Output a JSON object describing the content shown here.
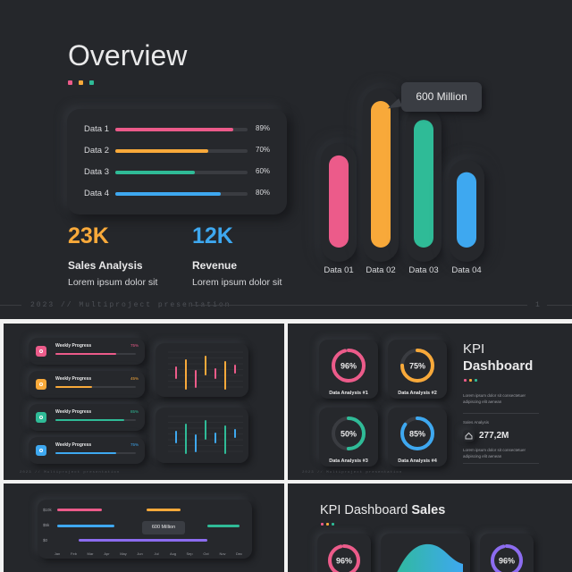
{
  "colors": {
    "pink": "#ec5b8a",
    "orange": "#f8a93a",
    "teal": "#2fbb97",
    "blue": "#3ea8f0",
    "purple": "#8c6cf0",
    "bg": "#25272b",
    "track": "#3a3c41"
  },
  "main": {
    "title": "Overview",
    "rows": [
      {
        "label": "Data 1",
        "value": 89,
        "pct": "89%",
        "color": "#ec5b8a"
      },
      {
        "label": "Data 2",
        "value": 70,
        "pct": "70%",
        "color": "#f8a93a"
      },
      {
        "label": "Data 3",
        "value": 60,
        "pct": "60%",
        "color": "#2fbb97"
      },
      {
        "label": "Data 4",
        "value": 80,
        "pct": "80%",
        "color": "#3ea8f0"
      }
    ],
    "stat1": {
      "value": "23K",
      "label": "Sales Analysis",
      "desc": "Lorem ipsum dolor sit"
    },
    "stat2": {
      "value": "12K",
      "label": "Revenue",
      "desc": "Lorem ipsum dolor sit"
    },
    "tooltip": "600 Million",
    "footer": "2023  //  Multiproject presentation",
    "page": "1"
  },
  "chart_data": [
    {
      "type": "bar",
      "categories": [
        "Data 01",
        "Data 02",
        "Data 03",
        "Data 04"
      ],
      "values": [
        440,
        700,
        610,
        360
      ],
      "colors": [
        "#ec5b8a",
        "#f8a93a",
        "#2fbb97",
        "#3ea8f0"
      ],
      "annotation": "600 Million",
      "grid": false
    }
  ],
  "thumb2": {
    "items": [
      {
        "label": "Weekly Progress",
        "pct": "75%",
        "value": 0.75,
        "color": "#ec5b8a"
      },
      {
        "label": "Weekly Progress",
        "pct": "45%",
        "value": 0.45,
        "color": "#f8a93a"
      },
      {
        "label": "Weekly Progress",
        "pct": "85%",
        "value": 0.85,
        "color": "#2fbb97"
      },
      {
        "label": "Weekly Progress",
        "pct": "75%",
        "value": 0.75,
        "color": "#3ea8f0"
      }
    ],
    "footer": "2023  //  Multiproject presentation"
  },
  "thumb3": {
    "title_light": "KPI",
    "title_bold": "Dashboard",
    "donuts": [
      {
        "pct": "96%",
        "value": 0.96,
        "label": "Data Analysis #1",
        "color": "#ec5b8a"
      },
      {
        "pct": "75%",
        "value": 0.75,
        "label": "Data Analysis #2",
        "color": "#f8a93a"
      },
      {
        "pct": "50%",
        "value": 0.5,
        "label": "Data Analysis #3",
        "color": "#2fbb97"
      },
      {
        "pct": "85%",
        "value": 0.85,
        "label": "Data Analysis #4",
        "color": "#3ea8f0"
      }
    ],
    "desc": "Lorem ipsum dolor sit consectetuer adipiscing elit aenean",
    "sales_label": "Sales Analysis",
    "sales_value": "277,2M",
    "desc2": "Lorem ipsum dolor sit consectetuer adipiscing elit aenean",
    "footer": "2023  //  Multiproject presentation"
  },
  "thumb4": {
    "tooltip": "600 Million",
    "ylabels": [
      "$10k",
      "$5k",
      "$0"
    ],
    "months": [
      "Jan",
      "Feb",
      "Mar",
      "Apr",
      "May",
      "Jun",
      "Jul",
      "Aug",
      "Sep",
      "Oct",
      "Nov",
      "Dec"
    ]
  },
  "thumb5": {
    "title_light": "KPI Dashboard ",
    "title_bold": "Sales",
    "donut1": "96%",
    "donut2": "96%"
  }
}
